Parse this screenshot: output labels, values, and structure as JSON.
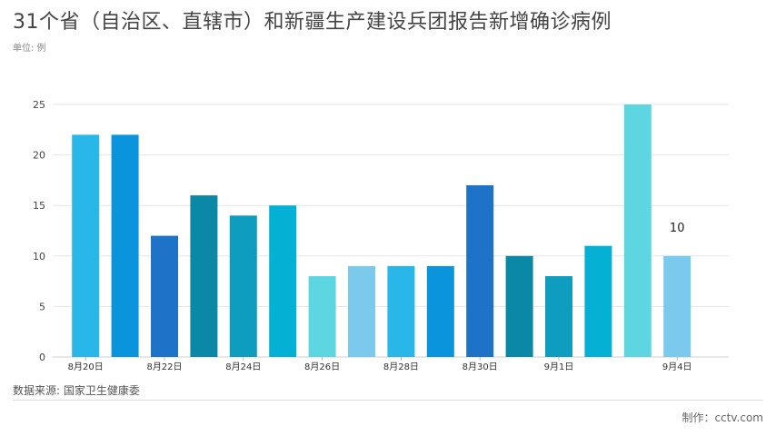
{
  "header": {
    "title": "31个省（自治区、直辖市）和新疆生产建设兵团报告新增确诊病例",
    "unit": "单位: 例"
  },
  "footer": {
    "source": "数据来源: 国家卫生健康委",
    "credit": "制作：cctv.com"
  },
  "colors": [
    "#29B6E8",
    "#0A94DB",
    "#1E73C8",
    "#0A88A6",
    "#0E9DBE",
    "#04B1D4",
    "#5DD6E2",
    "#7CC9EE"
  ],
  "chart_data": {
    "type": "bar",
    "title": "31个省（自治区、直辖市）和新疆生产建设兵团报告新增确诊病例",
    "subtitle": "单位: 例",
    "categories": [
      "8月20日",
      "8月21日",
      "8月22日",
      "8月23日",
      "8月24日",
      "8月25日",
      "8月26日",
      "8月27日",
      "8月28日",
      "8月29日",
      "8月30日",
      "8月31日",
      "9月1日",
      "9月2日",
      "9月3日",
      "9月4日"
    ],
    "tick_labels": [
      "8月20日",
      "",
      "8月22日",
      "",
      "8月24日",
      "",
      "8月26日",
      "",
      "8月28日",
      "",
      "8月30日",
      "",
      "9月1日",
      "",
      "",
      "9月4日"
    ],
    "values": [
      22,
      22,
      12,
      16,
      14,
      15,
      8,
      9,
      9,
      9,
      17,
      10,
      8,
      11,
      25,
      10
    ],
    "bar_colors": [
      "#29B6E8",
      "#0A94DB",
      "#1E73C8",
      "#0A88A6",
      "#0E9DBE",
      "#04B1D4",
      "#5DD6E2",
      "#7CC9EE",
      "#29B6E8",
      "#0A94DB",
      "#1E73C8",
      "#0A88A6",
      "#0E9DBE",
      "#04B1D4",
      "#5DD6E2",
      "#7CC9EE"
    ],
    "data_labels": [
      {
        "index": 15,
        "text": "10"
      }
    ],
    "ylim": [
      0,
      25
    ],
    "yticks": [
      0,
      5,
      10,
      15,
      20,
      25
    ],
    "grid": true,
    "xlabel": "",
    "ylabel": ""
  }
}
